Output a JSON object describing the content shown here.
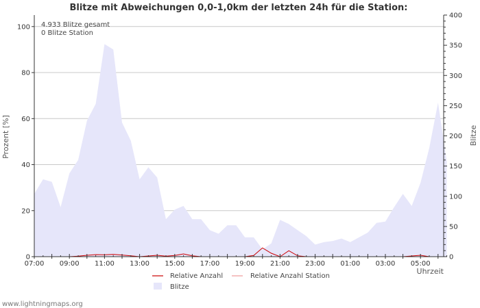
{
  "chart_data": {
    "type": "area",
    "title": "Blitze mit Abweichungen 0,0-1,0km der letzten 24h für die Station:",
    "xlabel": "Uhrzeit",
    "ylabel_left": "Prozent   [%]",
    "ylabel_right": "Blitze",
    "ylim_left": [
      0,
      105
    ],
    "ylim_right": [
      0,
      400
    ],
    "yticks_left": [
      "0",
      "20",
      "40",
      "60",
      "80",
      "100"
    ],
    "yticks_right": [
      "0",
      "50",
      "100",
      "150",
      "200",
      "250",
      "300",
      "350",
      "400"
    ],
    "xticks": [
      "07:00",
      "09:00",
      "11:00",
      "13:00",
      "15:00",
      "17:00",
      "19:00",
      "21:00",
      "23:00",
      "01:00",
      "03:00",
      "05:00"
    ],
    "info_lines": [
      "4.933 Blitze gesamt",
      "0 Blitze Station"
    ],
    "x_hours": [
      0,
      0.5,
      1,
      1.5,
      2,
      2.5,
      3,
      3.5,
      4,
      4.5,
      5,
      5.5,
      6,
      6.5,
      7,
      7.5,
      8,
      8.5,
      9,
      9.5,
      10,
      10.5,
      11,
      11.5,
      12,
      12.5,
      13,
      13.5,
      14,
      14.5,
      15,
      15.5,
      16,
      16.5,
      17,
      17.5,
      18,
      18.5,
      19,
      19.5,
      20,
      20.5,
      21,
      21.5,
      22,
      22.5,
      23,
      23.5
    ],
    "series": [
      {
        "name": "Blitze",
        "axis": "right",
        "color": "#e6e6fa",
        "values": [
          104,
          128,
          124,
          82,
          138,
          160,
          225,
          253,
          352,
          343,
          222,
          192,
          128,
          148,
          131,
          62,
          78,
          84,
          62,
          62,
          44,
          38,
          52,
          52,
          32,
          32,
          12,
          22,
          61,
          54,
          44,
          34,
          20,
          24,
          26,
          30,
          24,
          32,
          40,
          56,
          58,
          82,
          104,
          84,
          122,
          180,
          255,
          158
        ]
      },
      {
        "name": "Relative Anzahl",
        "axis": "left",
        "color": "#cc0000",
        "values": [
          0,
          0,
          0,
          0,
          0,
          0.2,
          0.6,
          0.9,
          0.8,
          1.0,
          0.7,
          0.4,
          0,
          0.3,
          0.6,
          0.2,
          0.5,
          1.2,
          0.4,
          0,
          0,
          0,
          0,
          0,
          0,
          0.5,
          3.8,
          1.5,
          0,
          2.6,
          0.4,
          0,
          0,
          0,
          0,
          0,
          0,
          0,
          0,
          0,
          0,
          0,
          0,
          0.3,
          0.6,
          0,
          0,
          0
        ]
      },
      {
        "name": "Relative Anzahl Station",
        "axis": "left",
        "color": "#ee9999",
        "values": [
          0,
          0,
          0,
          0,
          0,
          0,
          0,
          0,
          0,
          0,
          0,
          0,
          0,
          0,
          0,
          0,
          0,
          0,
          0,
          0,
          0,
          0,
          0,
          0,
          0,
          0,
          0,
          0,
          0,
          0,
          0,
          0,
          0,
          0,
          0,
          0,
          0,
          0,
          0,
          0,
          0,
          0,
          0,
          0,
          0,
          0,
          0,
          0
        ]
      }
    ],
    "legend": [
      {
        "label": "Relative Anzahl",
        "kind": "line",
        "color": "#cc0000"
      },
      {
        "label": "Relative Anzahl Station",
        "kind": "line",
        "color": "#ee9999"
      },
      {
        "label": "Blitze",
        "kind": "area",
        "color": "#e6e6fa"
      }
    ]
  },
  "footer": "www.lightningmaps.org"
}
